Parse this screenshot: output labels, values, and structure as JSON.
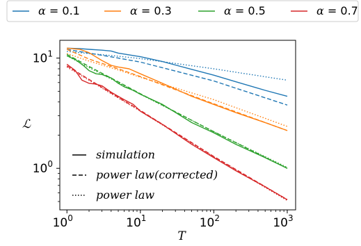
{
  "chart_data": {
    "type": "line",
    "xlabel": "T",
    "ylabel": "ℒ",
    "xscale": "log",
    "yscale": "log",
    "xlim": [
      0.8,
      1300
    ],
    "ylim": [
      0.42,
      14.5
    ],
    "x_ticks": [
      {
        "base": "10",
        "exp": "0",
        "value": 1
      },
      {
        "base": "10",
        "exp": "1",
        "value": 10
      },
      {
        "base": "10",
        "exp": "2",
        "value": 100
      },
      {
        "base": "10",
        "exp": "3",
        "value": 1000
      }
    ],
    "y_ticks": [
      {
        "base": "10",
        "exp": "0",
        "value": 1
      },
      {
        "base": "10",
        "exp": "1",
        "value": 10
      }
    ],
    "top_legend": {
      "placement": "top",
      "entries": [
        {
          "prefix": "α",
          "text": " = 0.1",
          "color": "#1f77b4"
        },
        {
          "prefix": "α",
          "text": " = 0.3",
          "color": "#ff7f0e"
        },
        {
          "prefix": "α",
          "text": " = 0.5",
          "color": "#2ca02c"
        },
        {
          "prefix": "α",
          "text": " = 0.7",
          "color": "#d62728"
        }
      ]
    },
    "style_legend": {
      "placement": "lower-left",
      "entries": [
        {
          "label": "simulation",
          "style": "solid"
        },
        {
          "label": "power law(corrected)",
          "style": "dashed"
        },
        {
          "label": "power law",
          "style": "dotted"
        }
      ]
    },
    "series": [
      {
        "name": "α = 0.1",
        "kind": "simulation",
        "color": "#1f77b4",
        "x": [
          1,
          1.5,
          2,
          3,
          4,
          5,
          7,
          10,
          20,
          50,
          100,
          200,
          500,
          1000
        ],
        "y": [
          12.3,
          12.2,
          12.0,
          11.8,
          11.6,
          11.1,
          10.7,
          10.3,
          9.3,
          7.9,
          7.0,
          6.1,
          5.1,
          4.5
        ]
      },
      {
        "name": "α = 0.1",
        "kind": "power law(corrected)",
        "color": "#1f77b4",
        "x": [
          1,
          2,
          5,
          10,
          100,
          1000
        ],
        "y": [
          12.0,
          11.1,
          10.0,
          9.2,
          6.2,
          3.75
        ]
      },
      {
        "name": "α = 0.1",
        "kind": "power law",
        "color": "#1f77b4",
        "x": [
          1,
          2,
          5,
          10,
          100,
          1000
        ],
        "y": [
          11.5,
          11.0,
          10.4,
          9.9,
          8.0,
          6.3
        ]
      },
      {
        "name": "α = 0.3",
        "kind": "simulation",
        "color": "#ff7f0e",
        "x": [
          1,
          1.5,
          2,
          3,
          4,
          5,
          7,
          10,
          20,
          50,
          100,
          200,
          500,
          1000
        ],
        "y": [
          12.3,
          12.0,
          11.2,
          9.5,
          8.6,
          8.3,
          8.0,
          7.2,
          5.9,
          4.5,
          3.8,
          3.2,
          2.6,
          2.2
        ]
      },
      {
        "name": "α = 0.3",
        "kind": "power law(corrected)",
        "color": "#ff7f0e",
        "x": [
          1,
          2,
          5,
          10,
          100,
          1000
        ],
        "y": [
          12.0,
          9.8,
          8.0,
          6.8,
          3.85,
          2.2
        ]
      },
      {
        "name": "α = 0.3",
        "kind": "power law",
        "color": "#ff7f0e",
        "x": [
          1,
          2,
          5,
          10,
          100,
          1000
        ],
        "y": [
          11.0,
          9.4,
          7.8,
          6.7,
          4.2,
          2.4
        ]
      },
      {
        "name": "α = 0.5",
        "kind": "simulation",
        "color": "#2ca02c",
        "x": [
          1,
          1.3,
          1.7,
          2,
          2.5,
          3,
          4,
          5,
          6,
          8,
          10,
          20,
          50,
          100,
          200,
          500,
          1000
        ],
        "y": [
          10.5,
          9.7,
          8.5,
          7.7,
          7.2,
          7.1,
          6.6,
          5.9,
          5.5,
          5.1,
          4.7,
          3.8,
          2.6,
          2.1,
          1.65,
          1.25,
          1.0
        ]
      },
      {
        "name": "α = 0.5",
        "kind": "power law(corrected)",
        "color": "#2ca02c",
        "x": [
          1,
          2,
          5,
          10,
          100,
          1000
        ],
        "y": [
          10.8,
          8.4,
          6.1,
          4.75,
          2.15,
          1.0
        ]
      },
      {
        "name": "α = 0.5",
        "kind": "power law",
        "color": "#2ca02c",
        "x": [
          1,
          2,
          5,
          10,
          100,
          1000
        ],
        "y": [
          10.5,
          8.2,
          6.0,
          4.7,
          2.15,
          1.02
        ]
      },
      {
        "name": "α = 0.7",
        "kind": "simulation",
        "color": "#d62728",
        "x": [
          1,
          1.3,
          1.6,
          2,
          2.5,
          3,
          4,
          5,
          6,
          8,
          10,
          20,
          50,
          100,
          200,
          500,
          1000
        ],
        "y": [
          8.8,
          7.7,
          6.3,
          5.9,
          5.8,
          5.6,
          4.9,
          4.5,
          4.2,
          3.8,
          3.3,
          2.5,
          1.65,
          1.25,
          0.95,
          0.68,
          0.52
        ]
      },
      {
        "name": "α = 0.7",
        "kind": "power law(corrected)",
        "color": "#d62728",
        "x": [
          1,
          2,
          5,
          10,
          100,
          1000
        ],
        "y": [
          8.5,
          6.4,
          4.4,
          3.35,
          1.28,
          0.52
        ]
      },
      {
        "name": "α = 0.7",
        "kind": "power law",
        "color": "#d62728",
        "x": [
          1,
          2,
          5,
          10,
          100,
          1000
        ],
        "y": [
          8.3,
          6.3,
          4.35,
          3.3,
          1.27,
          0.51
        ]
      }
    ]
  }
}
